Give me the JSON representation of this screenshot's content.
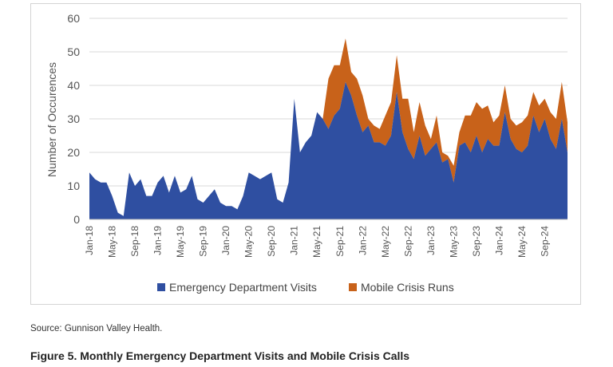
{
  "chart_data": {
    "type": "area",
    "stacked": true,
    "ylabel": "Number of Occurences",
    "xlabel": "",
    "ylim": [
      0,
      60
    ],
    "yticks": [
      0,
      10,
      20,
      30,
      40,
      50,
      60
    ],
    "grid": "horizontal",
    "legend_position": "bottom",
    "x_start": "Jan-18",
    "x_tick_labels": [
      "Jan-18",
      "May-18",
      "Sep-18",
      "Jan-19",
      "May-19",
      "Sep-19",
      "Jan-20",
      "May-20",
      "Sep-20",
      "Jan-21",
      "May-21",
      "Sep-21",
      "Jan-22",
      "May-22",
      "Sep-22",
      "Jan-23",
      "May-23",
      "Sep-23",
      "Jan-24",
      "May-24",
      "Sep-24"
    ],
    "series": [
      {
        "name": "Emergency Department Visits",
        "color": "#2f4fa1",
        "values": [
          14,
          12,
          11,
          11,
          7,
          2,
          1,
          14,
          10,
          12,
          7,
          7,
          11,
          13,
          8,
          13,
          8,
          9,
          13,
          6,
          5,
          7,
          9,
          5,
          4,
          4,
          3,
          7,
          14,
          13,
          12,
          13,
          14,
          6,
          5,
          11,
          36,
          20,
          23,
          25,
          32,
          30,
          27,
          31,
          33,
          41,
          37,
          31,
          26,
          28,
          23,
          23,
          22,
          25,
          38,
          26,
          21,
          18,
          25,
          19,
          21,
          23,
          17,
          18,
          11,
          22,
          23,
          20,
          25,
          20,
          24,
          22,
          22,
          32,
          24,
          21,
          20,
          22,
          31,
          26,
          30,
          24,
          21,
          30,
          20
        ]
      },
      {
        "name": "Mobile Crisis Runs",
        "color": "#c8621a",
        "values": [
          0,
          0,
          0,
          0,
          0,
          0,
          0,
          0,
          0,
          0,
          0,
          0,
          0,
          0,
          0,
          0,
          0,
          0,
          0,
          0,
          0,
          0,
          0,
          0,
          0,
          0,
          0,
          0,
          0,
          0,
          0,
          0,
          0,
          0,
          0,
          0,
          0,
          0,
          0,
          0,
          0,
          0,
          15,
          15,
          13,
          13,
          7,
          11,
          11,
          2,
          5,
          4,
          9,
          10,
          11,
          10,
          15,
          8,
          10,
          9,
          3,
          8,
          3,
          1,
          5,
          4,
          8,
          11,
          10,
          13,
          10,
          7,
          9,
          8,
          6,
          7,
          9,
          9,
          7,
          8,
          6,
          8,
          9,
          11,
          9
        ]
      }
    ]
  },
  "legend": {
    "items": [
      {
        "label": "Emergency Department Visits",
        "color": "#2f4fa1"
      },
      {
        "label": "Mobile Crisis Runs",
        "color": "#c8621a"
      }
    ]
  },
  "source": "Source: Gunnison Valley Health.",
  "caption": "Figure 5. Monthly Emergency Department Visits and Mobile Crisis Calls"
}
